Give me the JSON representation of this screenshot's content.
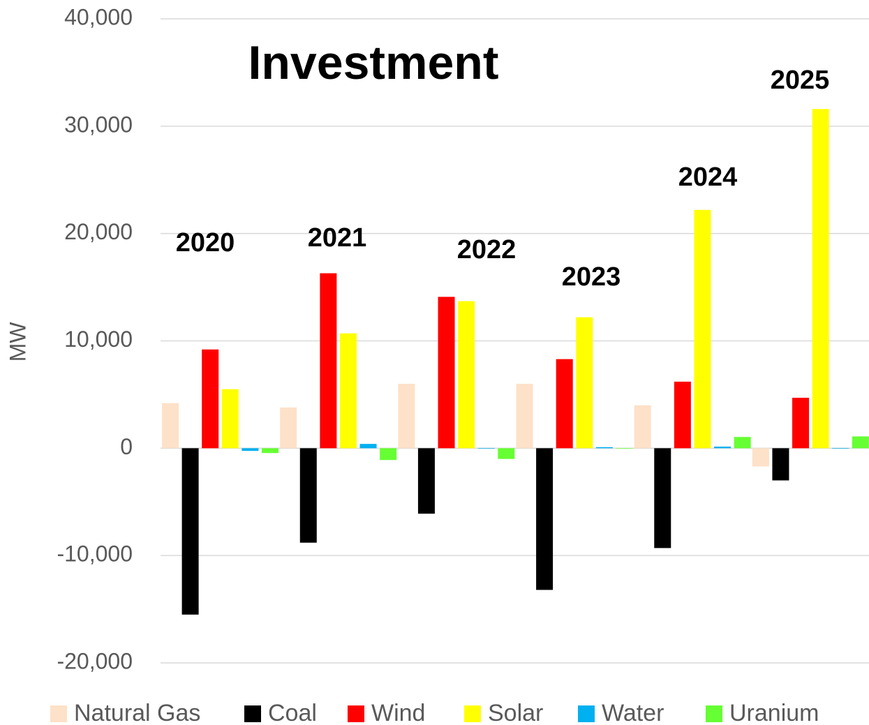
{
  "chart_data": {
    "type": "bar",
    "title": "Investment",
    "y_label": "MW",
    "categories": [
      "2020",
      "2021",
      "2022",
      "2023",
      "2024",
      "2025"
    ],
    "series": [
      {
        "name": "Natural Gas",
        "color": "#fde1c8",
        "values": [
          4200,
          3800,
          6000,
          6000,
          4000,
          -1700
        ]
      },
      {
        "name": "Coal",
        "color": "#000000",
        "values": [
          -15500,
          -8800,
          -6100,
          -13200,
          -9300,
          -3000
        ]
      },
      {
        "name": "Wind",
        "color": "#ff0000",
        "values": [
          9200,
          16300,
          14100,
          8300,
          6200,
          4700
        ]
      },
      {
        "name": "Solar",
        "color": "#ffff00",
        "values": [
          5500,
          10700,
          13700,
          12200,
          22200,
          31600
        ]
      },
      {
        "name": "Water",
        "color": "#00b0f0",
        "values": [
          -250,
          400,
          -50,
          100,
          150,
          -50
        ]
      },
      {
        "name": "Uranium",
        "color": "#66ff33",
        "values": [
          -450,
          -1100,
          -1000,
          -50,
          1050,
          1100
        ]
      }
    ],
    "ylim": [
      -20000,
      40000
    ],
    "yticks": [
      {
        "value": -20000,
        "label": "-20,000"
      },
      {
        "value": -10000,
        "label": "-10,000"
      },
      0,
      {
        "value": 10000,
        "label": "10,000"
      },
      {
        "value": 20000,
        "label": "20,000"
      },
      {
        "value": 30000,
        "label": "30,000"
      },
      {
        "value": 40000,
        "label": "40,000"
      }
    ],
    "grid": true,
    "legend": "bottom"
  }
}
